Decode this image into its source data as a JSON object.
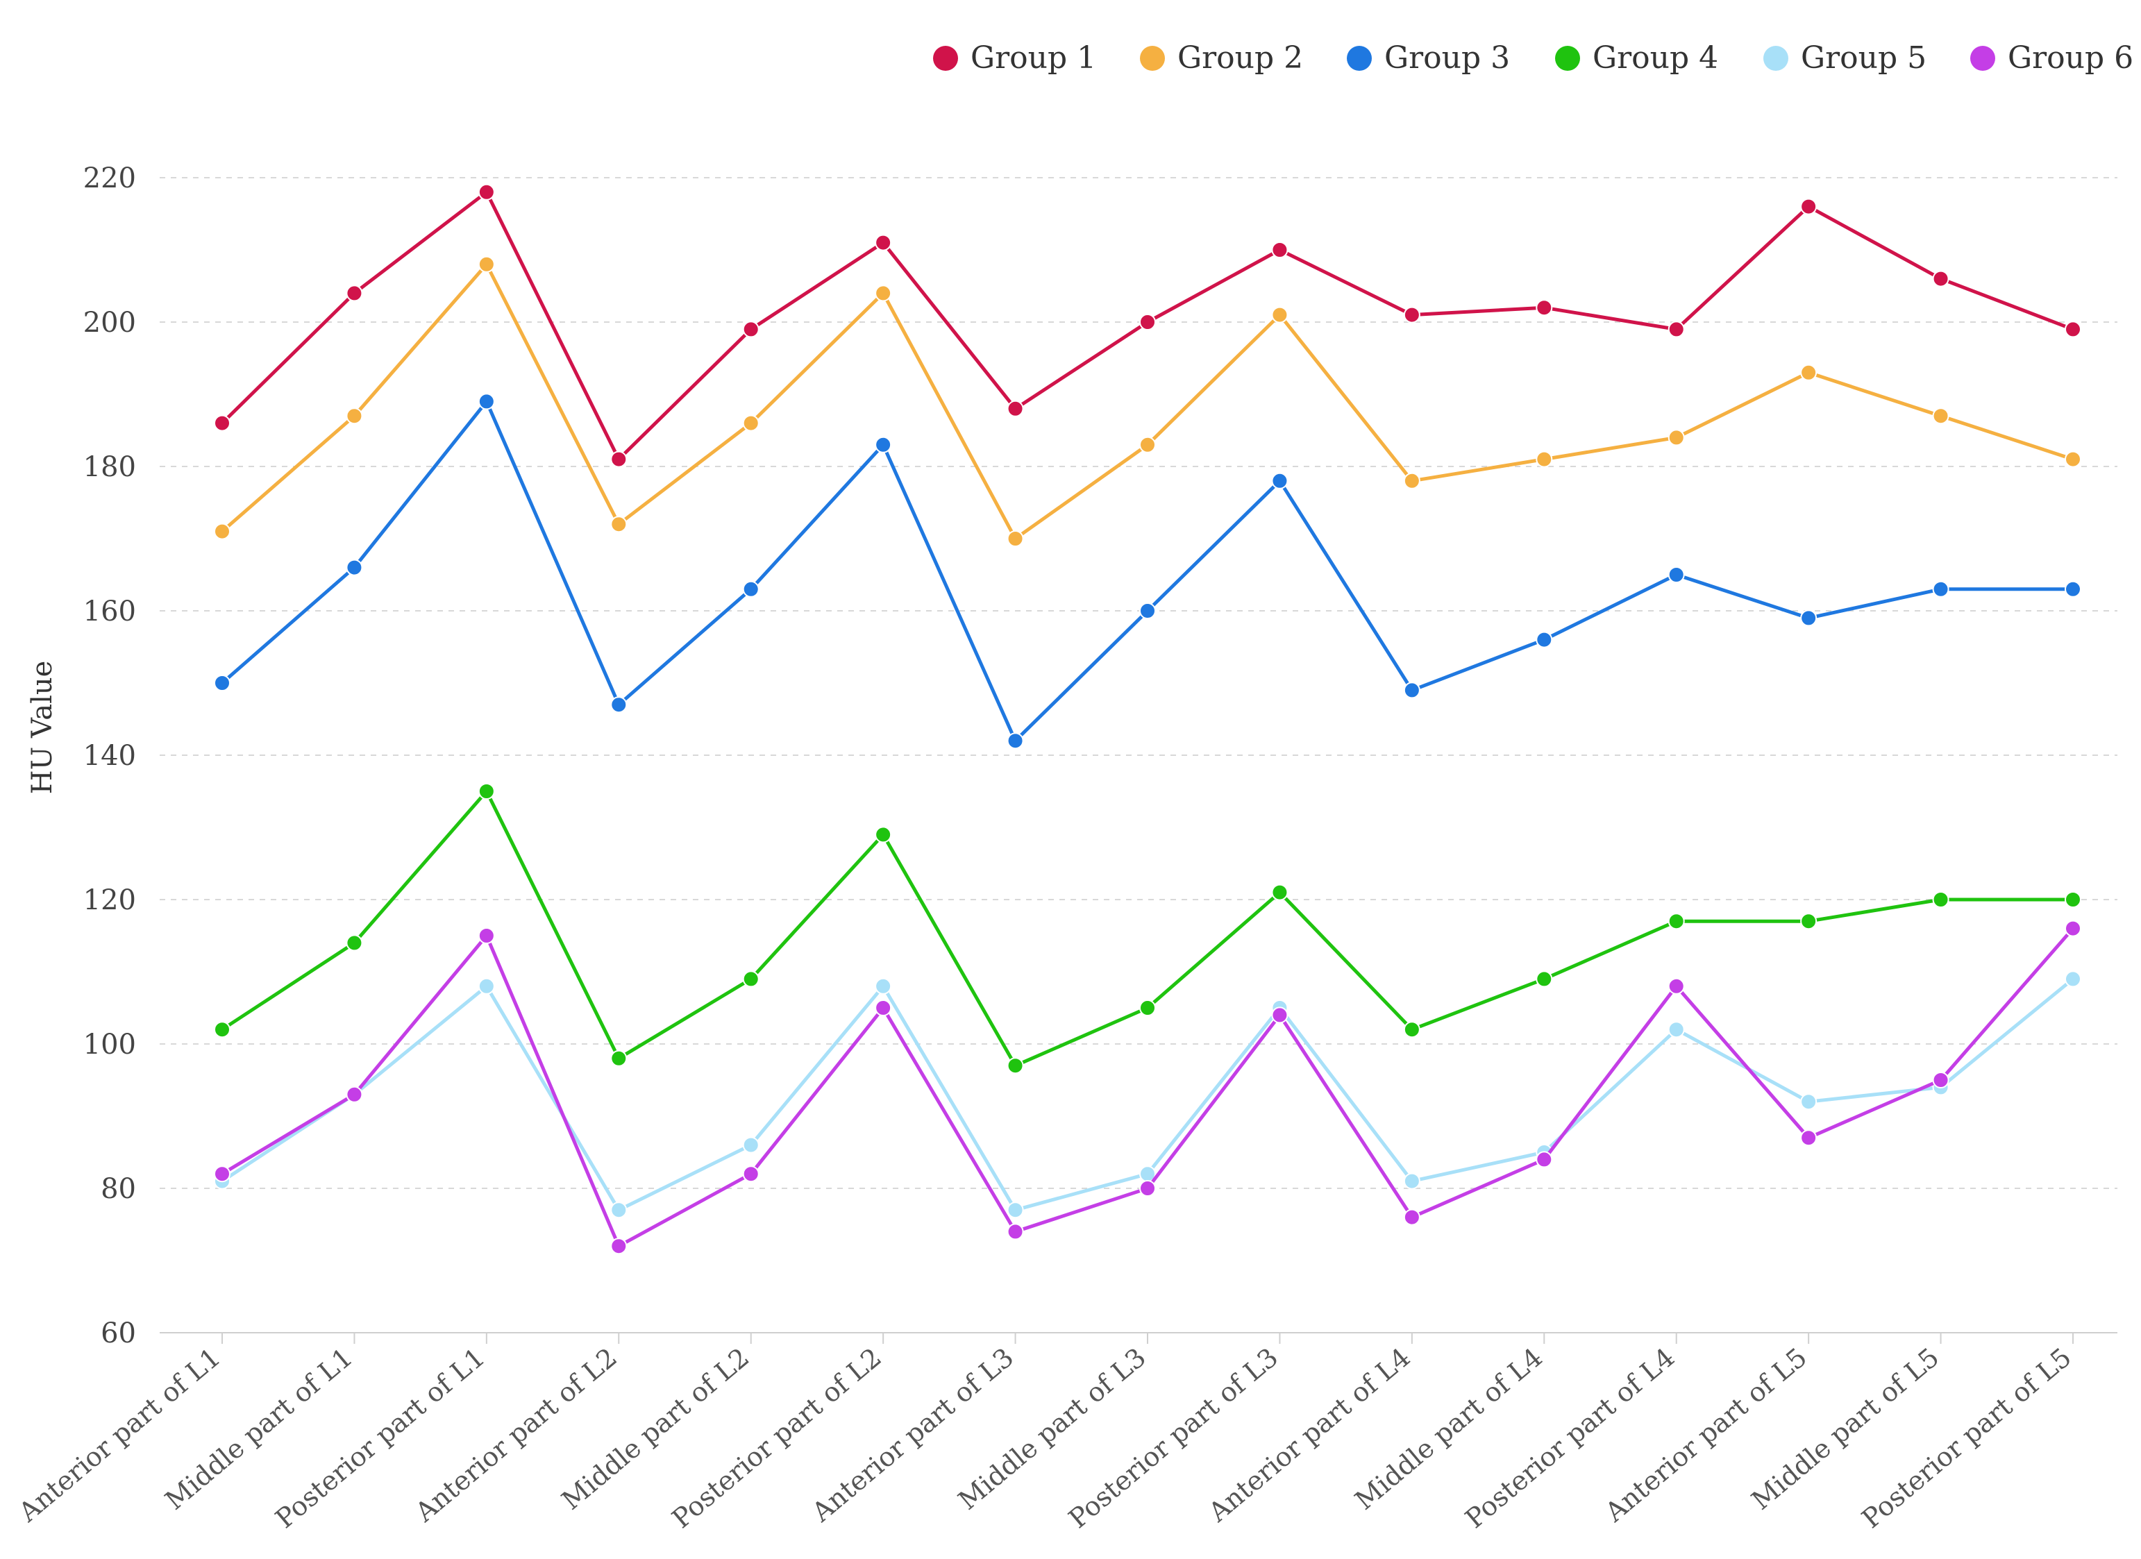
{
  "chart_data": {
    "type": "line",
    "title": "",
    "xlabel": "",
    "ylabel": "HU Value",
    "ylim": [
      60,
      220
    ],
    "yticks": [
      60,
      80,
      100,
      120,
      140,
      160,
      180,
      200,
      220
    ],
    "grid": true,
    "legend_position": "top-right",
    "categories": [
      "Anterior part of L1",
      "Middle part of L1",
      "Posterior part of L1",
      "Anterior part of L2",
      "Middle part of L2",
      "Posterior part of L2",
      "Anterior part of L3",
      "Middle part of L3",
      "Posterior part of L3",
      "Anterior part of L4",
      "Middle part of L4",
      "Posterior part of L4",
      "Anterior part of L5",
      "Middle part of L5",
      "Posterior part of L5"
    ],
    "series": [
      {
        "name": "Group 1",
        "color": "#d0134a",
        "values": [
          186,
          204,
          218,
          181,
          199,
          211,
          188,
          200,
          210,
          201,
          202,
          199,
          216,
          206,
          199
        ]
      },
      {
        "name": "Group 2",
        "color": "#f5b041",
        "values": [
          171,
          187,
          208,
          172,
          186,
          204,
          170,
          183,
          201,
          178,
          181,
          184,
          193,
          187,
          181
        ]
      },
      {
        "name": "Group 3",
        "color": "#1f78e0",
        "values": [
          150,
          166,
          189,
          147,
          163,
          183,
          142,
          160,
          178,
          149,
          156,
          165,
          159,
          163,
          163
        ]
      },
      {
        "name": "Group 4",
        "color": "#1fc30f",
        "values": [
          102,
          114,
          135,
          98,
          109,
          129,
          97,
          105,
          121,
          102,
          109,
          117,
          117,
          120,
          120
        ]
      },
      {
        "name": "Group 5",
        "color": "#a8e0f8",
        "values": [
          81,
          93,
          108,
          77,
          86,
          108,
          77,
          82,
          105,
          81,
          85,
          102,
          92,
          94,
          109
        ]
      },
      {
        "name": "Group 6",
        "color": "#c43ee6",
        "values": [
          82,
          93,
          115,
          72,
          82,
          105,
          74,
          80,
          104,
          76,
          84,
          108,
          87,
          95,
          116
        ]
      }
    ]
  }
}
